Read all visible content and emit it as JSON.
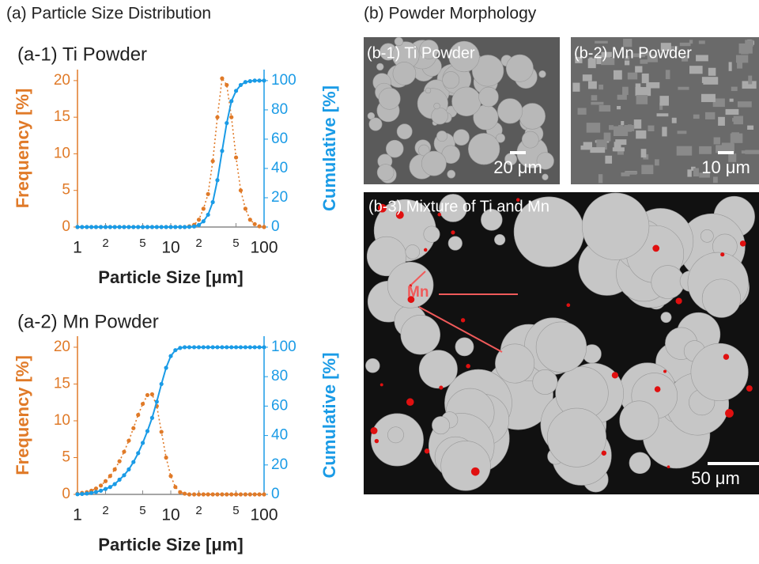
{
  "figure": {
    "title_a": "(a) Particle Size Distribution",
    "title_b": "(b) Powder Morphology",
    "images": [
      {
        "label": "(b-1) Ti Powder",
        "scale": "20 μm"
      },
      {
        "label": "(b-2) Mn Powder",
        "scale": "10 μm"
      },
      {
        "label": "(b-3) Mixture of Ti and Mn",
        "scale": "50 μm",
        "annotation": "Mn"
      }
    ]
  },
  "chart_data": [
    {
      "type": "line",
      "title": "(a-1) Ti Powder",
      "xlabel": "Particle Size [μm]",
      "xlog": true,
      "xlim": [
        1,
        100
      ],
      "xticks": [
        1,
        2,
        5,
        10,
        {
          "value": 20,
          "label": "2"
        },
        {
          "value": 50,
          "label": "5"
        },
        100
      ],
      "ylim": [
        0,
        21.5
      ],
      "yticks": [
        0,
        5,
        10,
        15,
        20
      ],
      "y2lim": [
        0,
        107.5
      ],
      "y2ticks": [
        0,
        20,
        40,
        60,
        80,
        100
      ],
      "x": [
        1,
        1.12,
        1.26,
        1.41,
        1.58,
        1.78,
        2,
        2.24,
        2.51,
        2.82,
        3.16,
        3.55,
        3.98,
        4.47,
        5.01,
        5.62,
        6.31,
        7.08,
        7.94,
        8.91,
        10,
        11.2,
        12.6,
        14.1,
        15.8,
        17.8,
        20,
        22.4,
        25.1,
        28.2,
        31.6,
        35.5,
        39.8,
        44.7,
        50.1,
        56.2,
        63.1,
        70.8,
        79.4,
        89.1,
        100
      ],
      "series": [
        {
          "name": "Frequency [%]",
          "color": "#e07a28",
          "style": "dotted",
          "values": [
            0,
            0,
            0,
            0,
            0,
            0,
            0,
            0,
            0,
            0,
            0,
            0,
            0,
            0,
            0,
            0,
            0,
            0,
            0,
            0,
            0,
            0,
            0,
            0,
            0.1,
            0.3,
            1,
            2.5,
            4.5,
            9,
            15,
            20.3,
            19.4,
            15,
            9.5,
            5,
            2.5,
            1,
            0.4,
            0.1,
            0
          ]
        },
        {
          "name": "Cumulative [%]",
          "color": "#1a9be6",
          "style": "solid",
          "axis": "y2",
          "values": [
            0,
            0,
            0,
            0,
            0,
            0,
            0,
            0,
            0,
            0,
            0,
            0,
            0,
            0,
            0,
            0,
            0,
            0,
            0,
            0,
            0,
            0,
            0,
            0,
            0.1,
            0.4,
            1.4,
            3.9,
            8.4,
            17,
            32,
            52,
            71,
            86,
            93,
            97,
            99,
            99.6,
            100,
            100,
            100
          ]
        }
      ]
    },
    {
      "type": "line",
      "title": "(a-2) Mn Powder",
      "xlabel": "Particle Size [μm]",
      "xlog": true,
      "xlim": [
        1,
        100
      ],
      "xticks": [
        1,
        2,
        5,
        10,
        {
          "value": 20,
          "label": "2"
        },
        {
          "value": 50,
          "label": "5"
        },
        100
      ],
      "ylim": [
        0,
        21.5
      ],
      "yticks": [
        0,
        5,
        10,
        15,
        20
      ],
      "y2lim": [
        0,
        107.5
      ],
      "y2ticks": [
        0,
        20,
        40,
        60,
        80,
        100
      ],
      "x": [
        1,
        1.12,
        1.26,
        1.41,
        1.58,
        1.78,
        2,
        2.24,
        2.51,
        2.82,
        3.16,
        3.55,
        3.98,
        4.47,
        5.01,
        5.62,
        6.31,
        7.08,
        7.94,
        8.91,
        10,
        11.2,
        12.6,
        14.1,
        15.8,
        17.8,
        20,
        22.4,
        25.1,
        28.2,
        31.6,
        35.5,
        39.8,
        44.7,
        50.1,
        56.2,
        63.1,
        70.8,
        79.4,
        89.1,
        100
      ],
      "series": [
        {
          "name": "Frequency [%]",
          "color": "#e07a28",
          "style": "dotted",
          "values": [
            0.1,
            0.2,
            0.3,
            0.5,
            0.8,
            1.2,
            1.8,
            2.5,
            3.4,
            4.5,
            5.8,
            7.3,
            9,
            10.8,
            12.3,
            13.5,
            13.6,
            12,
            8.5,
            5,
            2.5,
            1,
            0.3,
            0.1,
            0,
            0,
            0,
            0,
            0,
            0,
            0,
            0,
            0,
            0,
            0,
            0,
            0,
            0,
            0,
            0,
            0
          ]
        },
        {
          "name": "Cumulative [%]",
          "color": "#1a9be6",
          "style": "solid",
          "axis": "y2",
          "values": [
            0.1,
            0.3,
            0.6,
            1,
            1.6,
            2.5,
            3.7,
            5,
            7,
            10,
            13,
            17,
            22,
            28,
            35,
            43,
            52,
            63,
            75,
            86,
            94,
            98,
            99.5,
            100,
            100,
            100,
            100,
            100,
            100,
            100,
            100,
            100,
            100,
            100,
            100,
            100,
            100,
            100,
            100,
            100,
            100
          ]
        }
      ]
    }
  ]
}
